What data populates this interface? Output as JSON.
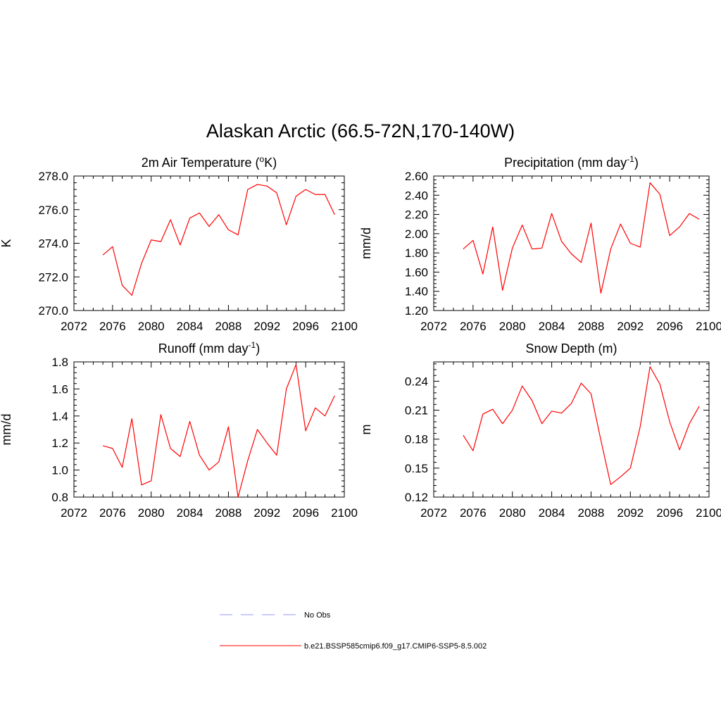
{
  "figure": {
    "title": "Alaskan Arctic (66.5-72N,170-140W)"
  },
  "legend": [
    {
      "label": "No Obs",
      "color": "#9999ff",
      "style": "dashed"
    },
    {
      "label": "b.e21.BSSP585cmip6.f09_g17.CMIP6-SSP5-8.5.002",
      "color": "#ff0000",
      "style": "solid"
    }
  ],
  "chart_data": [
    {
      "type": "line",
      "title": "2m Air Temperature (",
      "title_sup": "o",
      "title_tail": "K)",
      "ylabel": "K",
      "xlim": [
        2072,
        2100
      ],
      "ylim": [
        270.0,
        278.0
      ],
      "xticks": [
        2072,
        2076,
        2080,
        2084,
        2088,
        2092,
        2096,
        2100
      ],
      "yticks": [
        "270.0",
        "272.0",
        "274.0",
        "276.0",
        "278.0"
      ],
      "ytick_values": [
        270.0,
        272.0,
        274.0,
        276.0,
        278.0
      ],
      "series": [
        {
          "color": "#ff0000",
          "x": [
            2075,
            2076,
            2077,
            2078,
            2079,
            2080,
            2081,
            2082,
            2083,
            2084,
            2085,
            2086,
            2087,
            2088,
            2089,
            2090,
            2091,
            2092,
            2093,
            2094,
            2095,
            2096,
            2097,
            2098,
            2099
          ],
          "y": [
            273.3,
            273.8,
            271.5,
            270.9,
            272.8,
            274.2,
            274.1,
            275.4,
            273.9,
            275.5,
            275.8,
            275.0,
            275.7,
            274.8,
            274.5,
            277.2,
            277.5,
            277.4,
            277.0,
            275.1,
            276.8,
            277.2,
            276.9,
            276.9,
            275.7
          ]
        }
      ]
    },
    {
      "type": "line",
      "title": "Precipitation (mm day",
      "title_sup": "-1",
      "title_tail": ")",
      "ylabel": "mm/d",
      "xlim": [
        2072,
        2100
      ],
      "ylim": [
        1.2,
        2.6
      ],
      "xticks": [
        2072,
        2076,
        2080,
        2084,
        2088,
        2092,
        2096,
        2100
      ],
      "yticks": [
        "1.20",
        "1.40",
        "1.60",
        "1.80",
        "2.00",
        "2.20",
        "2.40",
        "2.60"
      ],
      "ytick_values": [
        1.2,
        1.4,
        1.6,
        1.8,
        2.0,
        2.2,
        2.4,
        2.6
      ],
      "series": [
        {
          "color": "#ff0000",
          "x": [
            2075,
            2076,
            2077,
            2078,
            2079,
            2080,
            2081,
            2082,
            2083,
            2084,
            2085,
            2086,
            2087,
            2088,
            2089,
            2090,
            2091,
            2092,
            2093,
            2094,
            2095,
            2096,
            2097,
            2098,
            2099
          ],
          "y": [
            1.84,
            1.93,
            1.58,
            2.07,
            1.41,
            1.85,
            2.09,
            1.84,
            1.85,
            2.21,
            1.92,
            1.79,
            1.7,
            2.11,
            1.38,
            1.84,
            2.1,
            1.9,
            1.86,
            2.53,
            2.41,
            1.98,
            2.07,
            2.21,
            2.15
          ]
        }
      ]
    },
    {
      "type": "line",
      "title": "Runoff (mm day",
      "title_sup": "-1",
      "title_tail": ")",
      "ylabel": "mm/d",
      "xlim": [
        2072,
        2100
      ],
      "ylim": [
        0.8,
        1.8
      ],
      "xticks": [
        2072,
        2076,
        2080,
        2084,
        2088,
        2092,
        2096,
        2100
      ],
      "yticks": [
        "0.8",
        "1.0",
        "1.2",
        "1.4",
        "1.6",
        "1.8"
      ],
      "ytick_values": [
        0.8,
        1.0,
        1.2,
        1.4,
        1.6,
        1.8
      ],
      "series": [
        {
          "color": "#ff0000",
          "x": [
            2075,
            2076,
            2077,
            2078,
            2079,
            2080,
            2081,
            2082,
            2083,
            2084,
            2085,
            2086,
            2087,
            2088,
            2089,
            2090,
            2091,
            2092,
            2093,
            2094,
            2095,
            2096,
            2097,
            2098,
            2099
          ],
          "y": [
            1.18,
            1.16,
            1.02,
            1.38,
            0.89,
            0.92,
            1.41,
            1.16,
            1.1,
            1.36,
            1.11,
            1.0,
            1.06,
            1.32,
            0.8,
            1.07,
            1.3,
            1.2,
            1.11,
            1.6,
            1.78,
            1.29,
            1.46,
            1.4,
            1.55
          ]
        }
      ]
    },
    {
      "type": "line",
      "title": "Snow Depth (m)",
      "title_sup": "",
      "title_tail": "",
      "ylabel": "m",
      "xlim": [
        2072,
        2100
      ],
      "ylim": [
        0.12,
        0.26
      ],
      "xticks": [
        2072,
        2076,
        2080,
        2084,
        2088,
        2092,
        2096,
        2100
      ],
      "yticks": [
        "0.12",
        "0.15",
        "0.18",
        "0.21",
        "0.24"
      ],
      "ytick_values": [
        0.12,
        0.15,
        0.18,
        0.21,
        0.24
      ],
      "series": [
        {
          "color": "#ff0000",
          "x": [
            2075,
            2076,
            2077,
            2078,
            2079,
            2080,
            2081,
            2082,
            2083,
            2084,
            2085,
            2086,
            2087,
            2088,
            2089,
            2090,
            2091,
            2092,
            2093,
            2094,
            2095,
            2096,
            2097,
            2098,
            2099
          ],
          "y": [
            0.184,
            0.168,
            0.206,
            0.211,
            0.196,
            0.21,
            0.235,
            0.22,
            0.196,
            0.209,
            0.207,
            0.217,
            0.238,
            0.227,
            0.179,
            0.133,
            0.141,
            0.15,
            0.193,
            0.255,
            0.237,
            0.198,
            0.169,
            0.196,
            0.214
          ]
        }
      ]
    }
  ]
}
